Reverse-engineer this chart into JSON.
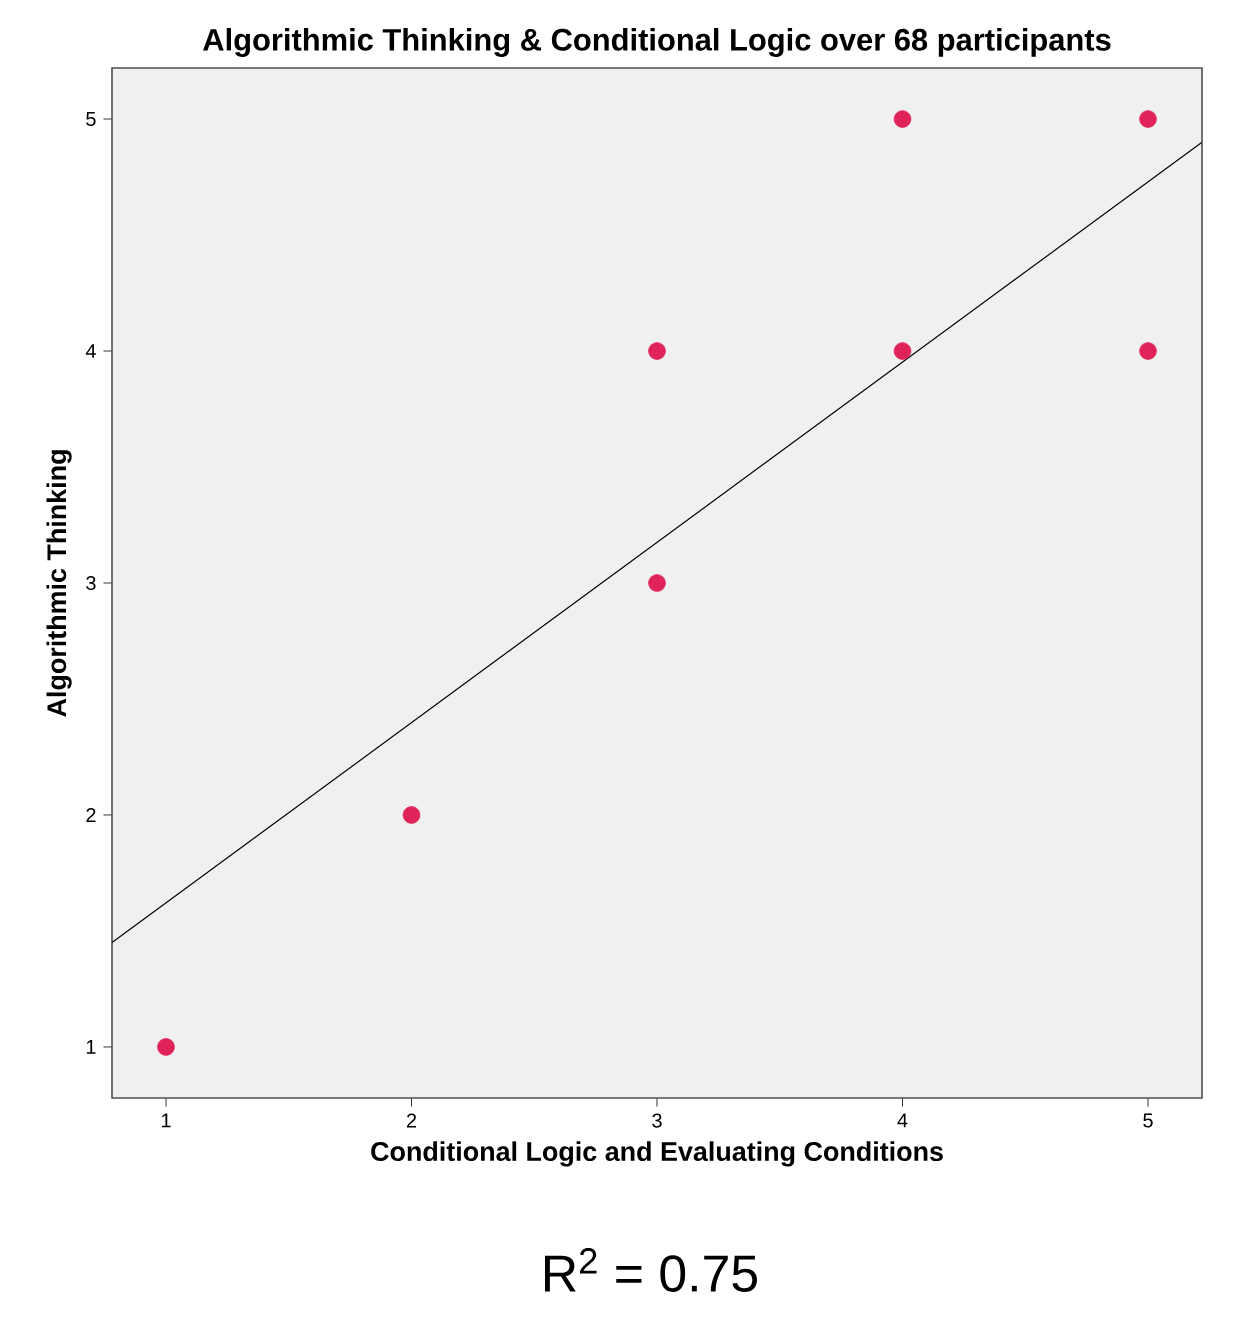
{
  "chart_data": {
    "type": "scatter",
    "title": "Algorithmic Thinking & Conditional Logic over 68 participants",
    "xlabel": "Conditional Logic and Evaluating Conditions",
    "ylabel": "Algorithmic Thinking",
    "annotations": [
      "R$^{2}$ = 0.75"
    ],
    "xlim": [
      0.78,
      5.22
    ],
    "ylim": [
      0.78,
      5.22
    ],
    "xticks": [
      1,
      2,
      3,
      4,
      5
    ],
    "yticks": [
      1,
      2,
      3,
      4,
      5
    ],
    "series": [
      {
        "type": "scatter",
        "marker": "circle",
        "color": "#e0245a",
        "x": [
          1,
          2,
          3,
          3,
          4,
          4,
          5,
          5
        ],
        "values": [
          1,
          2,
          3,
          4,
          4,
          5,
          4,
          5
        ]
      },
      {
        "type": "line",
        "color": "#000000",
        "marker": "none",
        "x": [
          0.78,
          5.22
        ],
        "values": [
          1.45,
          4.9
        ]
      }
    ]
  }
}
